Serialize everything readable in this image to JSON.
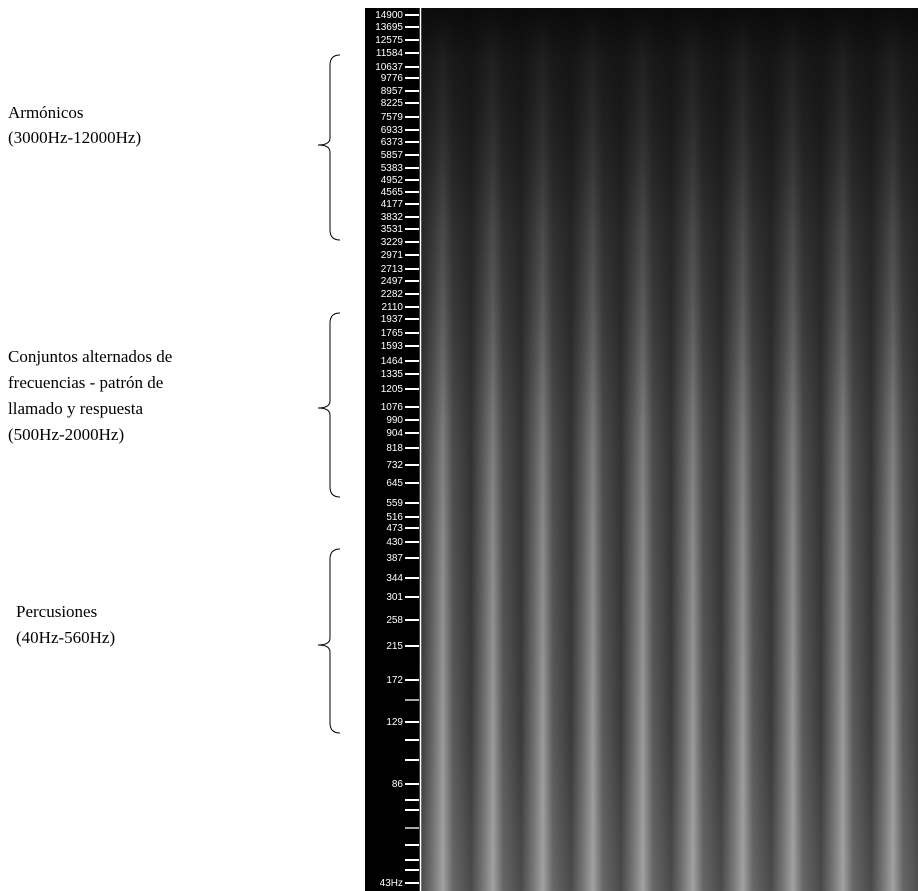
{
  "axis": {
    "labels": [
      "14900",
      "13695",
      "12575",
      "11584",
      "10637",
      "9776",
      "8957",
      "8225",
      "7579",
      "6933",
      "6373",
      "5857",
      "5383",
      "4952",
      "4565",
      "4177",
      "3832",
      "3531",
      "3229",
      "2971",
      "2713",
      "2497",
      "2282",
      "2110",
      "1937",
      "1765",
      "1593",
      "1464",
      "1335",
      "1205",
      "1076",
      "990",
      "904",
      "818",
      "732",
      "645",
      "559",
      "516",
      "473",
      "430",
      "387",
      "344",
      "301",
      "258",
      "215",
      "172",
      "129",
      "86",
      "43Hz"
    ]
  },
  "annotations": [
    {
      "lines": [
        "Armónicos",
        "(3000Hz-12000Hz)"
      ]
    },
    {
      "lines": [
        "Conjuntos alternados de",
        "frecuencias - patrón de",
        "llamado y respuesta",
        "(500Hz-2000Hz)"
      ]
    },
    {
      "lines": [
        "Percusiones",
        "(40Hz-560Hz)"
      ]
    }
  ]
}
